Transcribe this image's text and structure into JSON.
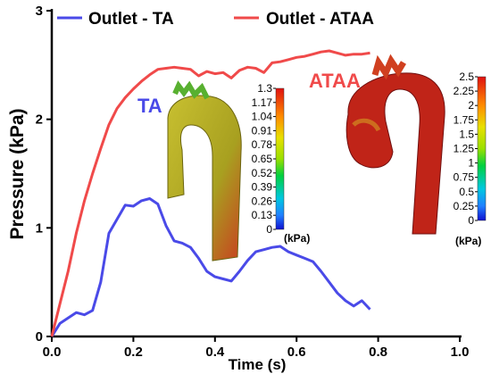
{
  "chart_data": {
    "type": "line",
    "xlabel": "Time (s)",
    "ylabel": "Pressure (kPa)",
    "xlim": [
      0,
      1.0
    ],
    "ylim": [
      0,
      3
    ],
    "x_ticks": [
      "0.0",
      "0.2",
      "0.4",
      "0.6",
      "0.8",
      "1.0"
    ],
    "y_ticks": [
      "0",
      "1",
      "2",
      "3"
    ],
    "grid": false,
    "legend_position": "top",
    "series": [
      {
        "name": "Outlet - TA",
        "color": "#4a4ae8",
        "x": [
          0.0,
          0.02,
          0.04,
          0.06,
          0.08,
          0.1,
          0.12,
          0.14,
          0.16,
          0.18,
          0.2,
          0.22,
          0.24,
          0.26,
          0.28,
          0.3,
          0.32,
          0.34,
          0.36,
          0.38,
          0.4,
          0.42,
          0.44,
          0.46,
          0.48,
          0.5,
          0.52,
          0.54,
          0.56,
          0.58,
          0.6,
          0.62,
          0.64,
          0.66,
          0.68,
          0.7,
          0.72,
          0.74,
          0.76,
          0.78
        ],
        "y": [
          0.0,
          0.12,
          0.17,
          0.22,
          0.2,
          0.24,
          0.5,
          0.95,
          1.08,
          1.21,
          1.2,
          1.25,
          1.27,
          1.22,
          1.02,
          0.88,
          0.86,
          0.82,
          0.72,
          0.6,
          0.55,
          0.53,
          0.51,
          0.6,
          0.7,
          0.78,
          0.8,
          0.82,
          0.83,
          0.78,
          0.75,
          0.72,
          0.69,
          0.6,
          0.5,
          0.4,
          0.33,
          0.28,
          0.33,
          0.25
        ]
      },
      {
        "name": "Outlet - ATAA",
        "color": "#f04a4a",
        "x": [
          0.0,
          0.02,
          0.04,
          0.06,
          0.08,
          0.1,
          0.12,
          0.14,
          0.16,
          0.18,
          0.2,
          0.22,
          0.24,
          0.26,
          0.28,
          0.3,
          0.32,
          0.34,
          0.36,
          0.38,
          0.4,
          0.42,
          0.44,
          0.46,
          0.48,
          0.5,
          0.52,
          0.54,
          0.56,
          0.58,
          0.6,
          0.62,
          0.64,
          0.66,
          0.68,
          0.7,
          0.72,
          0.74,
          0.76,
          0.78
        ],
        "y": [
          0.0,
          0.3,
          0.6,
          0.95,
          1.25,
          1.5,
          1.73,
          1.95,
          2.1,
          2.2,
          2.28,
          2.35,
          2.41,
          2.46,
          2.47,
          2.48,
          2.47,
          2.46,
          2.4,
          2.44,
          2.42,
          2.43,
          2.38,
          2.45,
          2.48,
          2.47,
          2.43,
          2.52,
          2.53,
          2.55,
          2.57,
          2.58,
          2.6,
          2.62,
          2.63,
          2.61,
          2.59,
          2.6,
          2.6,
          2.61
        ]
      }
    ]
  },
  "insets": {
    "ta": {
      "label": "TA",
      "color": "#4a4ae8",
      "colorbar_ticks": [
        "1.3",
        "1.17",
        "1.04",
        "0.91",
        "0.78",
        "0.65",
        "0.52",
        "0.39",
        "0.26",
        "0.13",
        "0"
      ],
      "unit": "(kPa)"
    },
    "ataa": {
      "label": "ATAA",
      "color": "#f04a4a",
      "colorbar_ticks": [
        "2.5",
        "2.25",
        "2",
        "1.75",
        "1.5",
        "1.25",
        "1",
        "0.75",
        "0.5",
        "0.25",
        "0"
      ],
      "unit": "(kPa)"
    }
  }
}
